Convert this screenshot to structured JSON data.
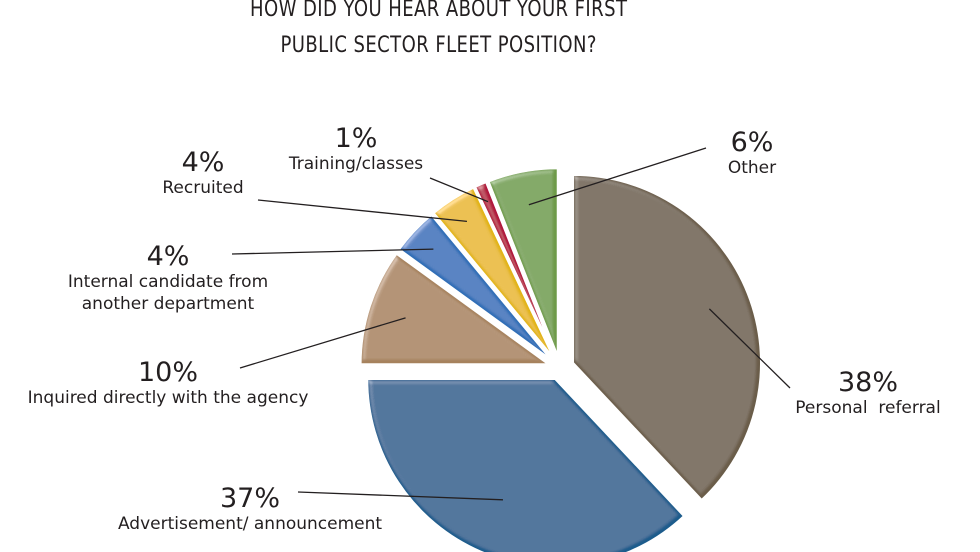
{
  "title": [
    "HOW DID YOU HEAR ABOUT YOUR FIRST",
    "PUBLIC SECTOR FLEET POSITION?"
  ],
  "chart_data": {
    "type": "pie",
    "title": "HOW DID YOU HEAR ABOUT YOUR FIRST PUBLIC SECTOR FLEET POSITION?",
    "slices": [
      {
        "label": "Personal  referral",
        "value": 38,
        "value_label": "38%",
        "color": "#6b5d4a"
      },
      {
        "label": "Advertisement/ announcement",
        "value": 37,
        "value_label": "37%",
        "color": "#1d5c8c"
      },
      {
        "label": "Inquired directly with the agency",
        "value": 10,
        "value_label": "10%",
        "color": "#a6825d"
      },
      {
        "label": "Internal candidate from another department",
        "value": 4,
        "value_label": "4%",
        "color": "#2f6eb6"
      },
      {
        "label": "Recruited",
        "value": 4,
        "value_label": "4%",
        "color": "#e2b418"
      },
      {
        "label": "Training/classes",
        "value": 1,
        "value_label": "1%",
        "color": "#b0183c"
      },
      {
        "label": "Other",
        "value": 6,
        "value_label": "6%",
        "color": "#6e9a48"
      }
    ]
  }
}
